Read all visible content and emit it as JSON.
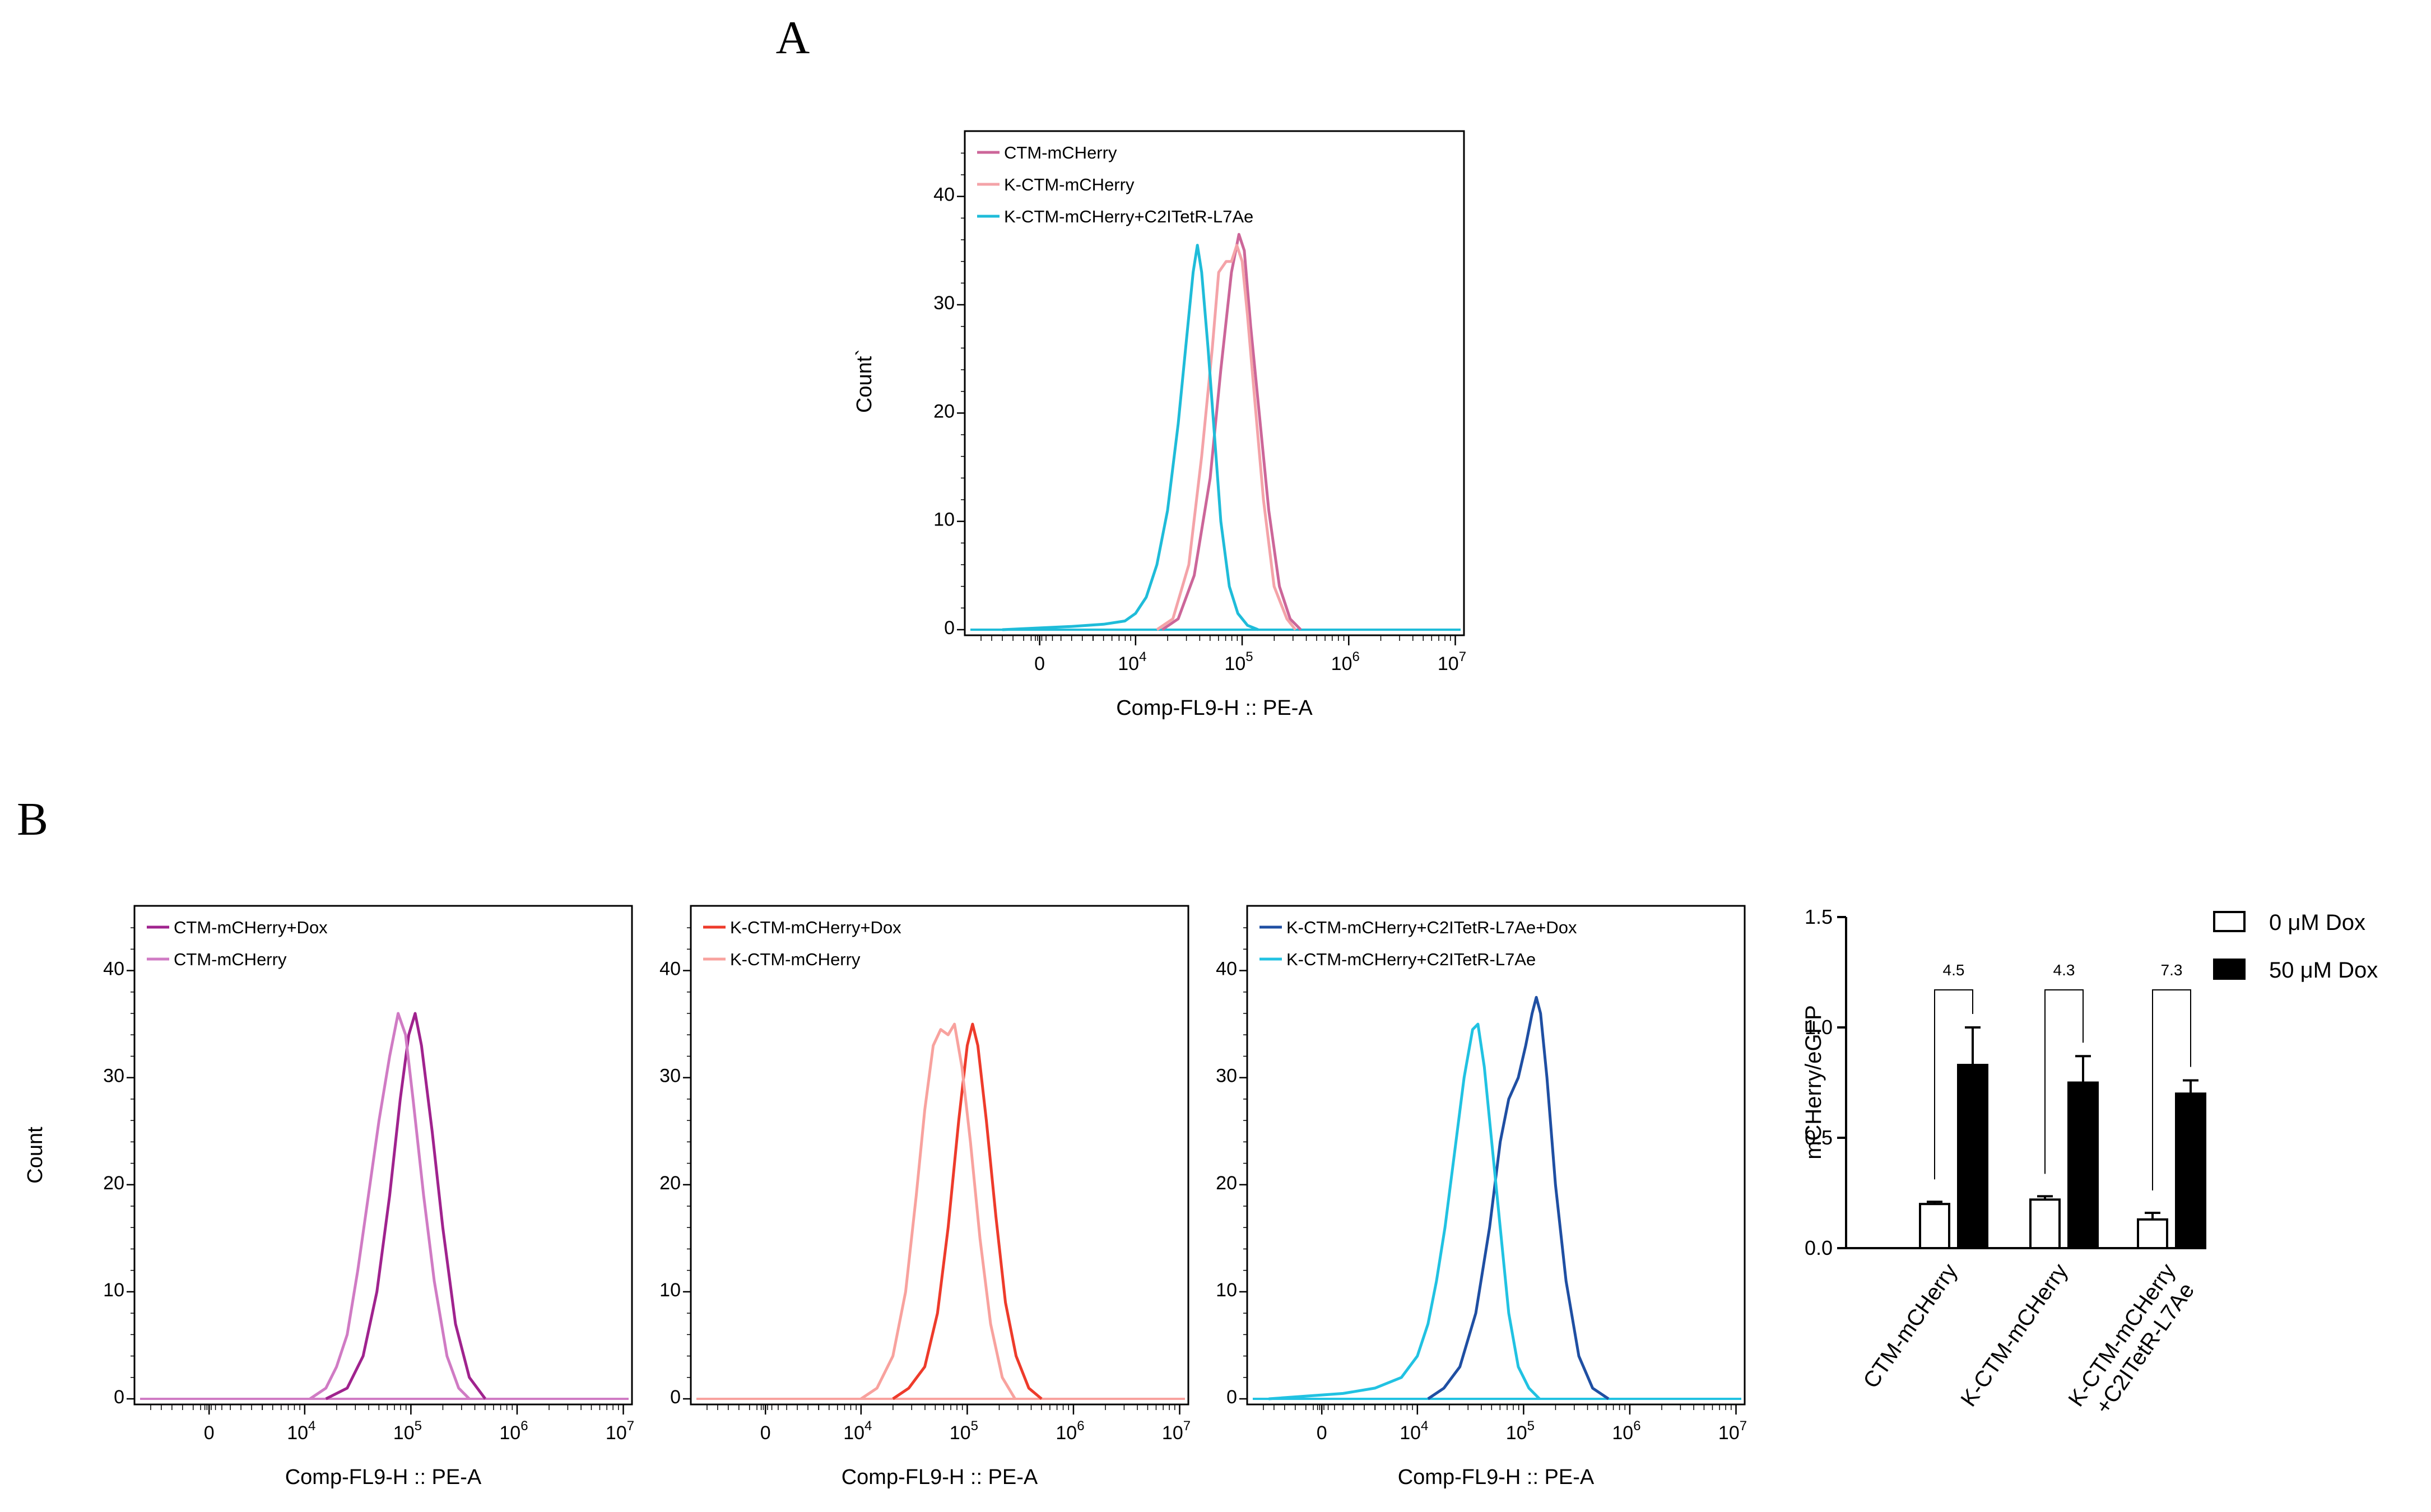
{
  "figure": {
    "panel_a_label": "A",
    "panel_b_label": "B"
  },
  "chart_data": [
    {
      "id": "A",
      "type": "line",
      "xlabel": "Comp-FL9-H :: PE-A",
      "ylabel": "Count`",
      "x_scale": "log",
      "x_ticks": [
        "0",
        "10^4",
        "10^5",
        "10^6",
        "10^7"
      ],
      "ylim": [
        0,
        45
      ],
      "y_ticks": [
        0,
        10,
        20,
        30,
        40
      ],
      "grid": false,
      "legend_position": "top-left",
      "series": [
        {
          "name": "CTM-mCHerry",
          "color": "#cc6699",
          "points": [
            [
              4.25,
              0
            ],
            [
              4.4,
              1
            ],
            [
              4.55,
              5
            ],
            [
              4.7,
              14
            ],
            [
              4.8,
              24
            ],
            [
              4.9,
              33
            ],
            [
              4.97,
              36.5
            ],
            [
              5.02,
              35
            ],
            [
              5.08,
              28
            ],
            [
              5.16,
              20
            ],
            [
              5.25,
              11
            ],
            [
              5.35,
              4
            ],
            [
              5.45,
              1
            ],
            [
              5.55,
              0
            ]
          ]
        },
        {
          "name": "K-CTM-mCHerry",
          "color": "#f4a3a8",
          "points": [
            [
              4.2,
              0
            ],
            [
              4.35,
              1
            ],
            [
              4.5,
              6
            ],
            [
              4.62,
              16
            ],
            [
              4.72,
              26
            ],
            [
              4.78,
              33
            ],
            [
              4.85,
              34
            ],
            [
              4.9,
              34
            ],
            [
              4.95,
              35.5
            ],
            [
              5.0,
              34
            ],
            [
              5.05,
              29
            ],
            [
              5.12,
              21
            ],
            [
              5.2,
              12
            ],
            [
              5.3,
              4
            ],
            [
              5.42,
              1
            ],
            [
              5.5,
              0
            ]
          ]
        },
        {
          "name": "K-CTM-mCHerry+C2ITetR-L7Ae",
          "color": "#1fbcd9",
          "points": [
            [
              2.75,
              0
            ],
            [
              3.4,
              0.3
            ],
            [
              3.7,
              0.5
            ],
            [
              3.9,
              0.8
            ],
            [
              4.0,
              1.5
            ],
            [
              4.1,
              3
            ],
            [
              4.2,
              6
            ],
            [
              4.3,
              11
            ],
            [
              4.4,
              19
            ],
            [
              4.48,
              27
            ],
            [
              4.54,
              33
            ],
            [
              4.58,
              35.5
            ],
            [
              4.62,
              33
            ],
            [
              4.68,
              26
            ],
            [
              4.74,
              18
            ],
            [
              4.8,
              10
            ],
            [
              4.88,
              4
            ],
            [
              4.96,
              1.5
            ],
            [
              5.05,
              0.4
            ],
            [
              5.15,
              0
            ]
          ]
        }
      ]
    },
    {
      "id": "B1",
      "type": "line",
      "xlabel": "Comp-FL9-H :: PE-A",
      "ylabel": "Count",
      "x_scale": "log",
      "x_ticks": [
        "0",
        "10^4",
        "10^5",
        "10^6",
        "10^7"
      ],
      "ylim": [
        0,
        45
      ],
      "y_ticks": [
        0,
        10,
        20,
        30,
        40
      ],
      "grid": false,
      "legend_position": "top-left",
      "series": [
        {
          "name": "CTM-mCHerry+Dox",
          "color": "#a0238e",
          "points": [
            [
              4.2,
              0
            ],
            [
              4.4,
              1
            ],
            [
              4.55,
              4
            ],
            [
              4.68,
              10
            ],
            [
              4.8,
              19
            ],
            [
              4.9,
              28
            ],
            [
              4.98,
              34
            ],
            [
              5.04,
              36
            ],
            [
              5.1,
              33
            ],
            [
              5.2,
              25
            ],
            [
              5.3,
              16
            ],
            [
              5.42,
              7
            ],
            [
              5.55,
              2
            ],
            [
              5.7,
              0
            ]
          ]
        },
        {
          "name": "CTM-mCHerry",
          "color": "#d07bc4",
          "points": [
            [
              4.05,
              0
            ],
            [
              4.2,
              1
            ],
            [
              4.3,
              3
            ],
            [
              4.4,
              6
            ],
            [
              4.5,
              12
            ],
            [
              4.6,
              19
            ],
            [
              4.7,
              26
            ],
            [
              4.8,
              32
            ],
            [
              4.88,
              36
            ],
            [
              4.95,
              34
            ],
            [
              5.02,
              28
            ],
            [
              5.12,
              19
            ],
            [
              5.22,
              11
            ],
            [
              5.34,
              4
            ],
            [
              5.45,
              1
            ],
            [
              5.55,
              0
            ]
          ]
        }
      ]
    },
    {
      "id": "B2",
      "type": "line",
      "xlabel": "Comp-FL9-H :: PE-A",
      "ylabel": "",
      "x_scale": "log",
      "x_ticks": [
        "0",
        "10^4",
        "10^5",
        "10^6",
        "10^7"
      ],
      "ylim": [
        0,
        45
      ],
      "y_ticks": [
        0,
        10,
        20,
        30,
        40
      ],
      "grid": false,
      "legend_position": "top-left",
      "series": [
        {
          "name": "K-CTM-mCHerry+Dox",
          "color": "#ee3b2b",
          "points": [
            [
              4.3,
              0
            ],
            [
              4.45,
              1
            ],
            [
              4.6,
              3
            ],
            [
              4.72,
              8
            ],
            [
              4.82,
              16
            ],
            [
              4.92,
              26
            ],
            [
              5.0,
              33
            ],
            [
              5.05,
              35
            ],
            [
              5.1,
              33
            ],
            [
              5.18,
              26
            ],
            [
              5.27,
              17
            ],
            [
              5.36,
              9
            ],
            [
              5.46,
              4
            ],
            [
              5.58,
              1
            ],
            [
              5.7,
              0
            ]
          ]
        },
        {
          "name": "K-CTM-mCHerry",
          "color": "#f8a29e",
          "points": [
            [
              4.0,
              0
            ],
            [
              4.15,
              1
            ],
            [
              4.3,
              4
            ],
            [
              4.42,
              10
            ],
            [
              4.52,
              19
            ],
            [
              4.6,
              27
            ],
            [
              4.68,
              33
            ],
            [
              4.75,
              34.5
            ],
            [
              4.82,
              34
            ],
            [
              4.88,
              35
            ],
            [
              4.95,
              31
            ],
            [
              5.03,
              24
            ],
            [
              5.12,
              15
            ],
            [
              5.22,
              7
            ],
            [
              5.33,
              2
            ],
            [
              5.45,
              0
            ]
          ]
        }
      ]
    },
    {
      "id": "B3",
      "type": "line",
      "xlabel": "Comp-FL9-H :: PE-A",
      "ylabel": "",
      "x_scale": "log",
      "x_ticks": [
        "0",
        "10^4",
        "10^5",
        "10^6",
        "10^7"
      ],
      "ylim": [
        0,
        45
      ],
      "y_ticks": [
        0,
        10,
        20,
        30,
        40
      ],
      "grid": false,
      "legend_position": "top-left",
      "series": [
        {
          "name": "K-CTM-mCHerry+C2ITetR-L7Ae+Dox",
          "color": "#1f4fa3",
          "points": [
            [
              4.1,
              0
            ],
            [
              4.25,
              1
            ],
            [
              4.4,
              3
            ],
            [
              4.55,
              8
            ],
            [
              4.68,
              16
            ],
            [
              4.78,
              24
            ],
            [
              4.86,
              28
            ],
            [
              4.95,
              30
            ],
            [
              5.02,
              33
            ],
            [
              5.08,
              36
            ],
            [
              5.12,
              37.5
            ],
            [
              5.16,
              36
            ],
            [
              5.22,
              30
            ],
            [
              5.3,
              20
            ],
            [
              5.4,
              11
            ],
            [
              5.52,
              4
            ],
            [
              5.65,
              1
            ],
            [
              5.8,
              0
            ]
          ]
        },
        {
          "name": "K-CTM-mCHerry+C2ITetR-L7Ae",
          "color": "#21c2e2",
          "points": [
            [
              2.6,
              0
            ],
            [
              3.3,
              0.5
            ],
            [
              3.6,
              1
            ],
            [
              3.85,
              2
            ],
            [
              4.0,
              4
            ],
            [
              4.1,
              7
            ],
            [
              4.18,
              11
            ],
            [
              4.26,
              16
            ],
            [
              4.35,
              23
            ],
            [
              4.44,
              30
            ],
            [
              4.52,
              34.5
            ],
            [
              4.57,
              35
            ],
            [
              4.63,
              31
            ],
            [
              4.7,
              24
            ],
            [
              4.78,
              16
            ],
            [
              4.86,
              8
            ],
            [
              4.95,
              3
            ],
            [
              5.05,
              1
            ],
            [
              5.15,
              0
            ]
          ]
        }
      ]
    },
    {
      "id": "B4",
      "type": "bar",
      "ylabel": "mCHerry/eGFP",
      "ylim": [
        0,
        1.5
      ],
      "y_ticks": [
        "0.0",
        "0.5",
        "1.0",
        "1.5"
      ],
      "categories": [
        "CTM-mCHerry",
        "K-CTM-mCHerry",
        "K-CTM-mCHerry +C2ITetR-L7Ae"
      ],
      "category_lines": [
        [
          "CTM-mCHerry"
        ],
        [
          "K-CTM-mCHerry"
        ],
        [
          "K-CTM-mCHerry",
          "+C2ITetR-L7Ae"
        ]
      ],
      "legend_position": "top-right",
      "series": [
        {
          "name": "0 μM Dox",
          "fill": "#ffffff",
          "values": [
            0.2,
            0.22,
            0.13
          ],
          "errors": [
            0.01,
            0.015,
            0.03
          ]
        },
        {
          "name": "50 μM Dox",
          "fill": "#000000",
          "values": [
            0.83,
            0.75,
            0.7
          ],
          "errors": [
            0.17,
            0.12,
            0.06
          ]
        }
      ],
      "annotations": [
        "4.5",
        "4.3",
        "7.3"
      ]
    }
  ]
}
